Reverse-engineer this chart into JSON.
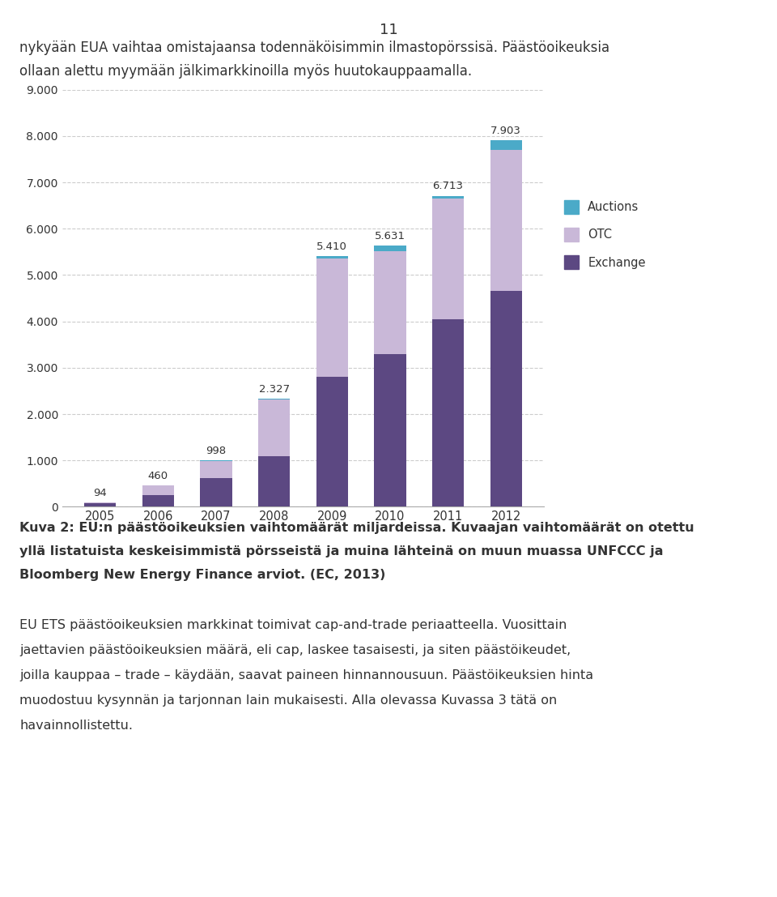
{
  "years": [
    "2005",
    "2006",
    "2007",
    "2008",
    "2009",
    "2010",
    "2011",
    "2012"
  ],
  "exchange": [
    80,
    260,
    620,
    1100,
    2800,
    3300,
    4050,
    4650
  ],
  "otc": [
    14,
    195,
    370,
    1220,
    2560,
    2220,
    2600,
    3050
  ],
  "auctions": [
    0,
    5,
    8,
    7,
    50,
    111,
    63,
    203
  ],
  "totals": [
    94,
    460,
    998,
    2327,
    5410,
    5631,
    6713,
    7903
  ],
  "total_labels": [
    "94",
    "460",
    "998",
    "2.327",
    "5.410",
    "5.631",
    "6.713",
    "7.903"
  ],
  "color_exchange": "#5C4882",
  "color_otc": "#C9B8D8",
  "color_auctions": "#4BAAC8",
  "ylim": [
    0,
    9000
  ],
  "yticks": [
    0,
    1000,
    2000,
    3000,
    4000,
    5000,
    6000,
    7000,
    8000,
    9000
  ],
  "ytick_labels": [
    "0",
    "1.000",
    "2.000",
    "3.000",
    "4.000",
    "5.000",
    "6.000",
    "7.000",
    "8.000",
    "9.000"
  ],
  "grid_color": "#CCCCCC",
  "background_color": "#FFFFFF",
  "text_color": "#333333",
  "bar_width": 0.55,
  "header1": "nykyään EUA vaihtaa omistajaansa todennäköisimmin ilmastopörssisä. Päästöoikeuksia",
  "header2": "ollaan alettu myymään jälkimarkkinoilla myös huutokauppaamalla.",
  "page_number": "11",
  "caption_bold": "Kuva 2: EU:n päästöoikeuksien vaihtomäärät miljardeissa. Kuvaajan vaihtomäärät on otettu yllä listatuista keskeisimmistä pörsseistä ja muina lähteinä on muun muassa UNFCCC ja Bloomberg New Energy Finance arviot. (EC, 2013)",
  "body_text": "EU ETS päästöoikeuksien markkinat toimivat cap-and-trade periaatteella. Vuosittain jaettavien päästöoikeuksien määrä, eli cap, laskee tasaisesti, ja siten päästöikeudet, joilla kauppaa – trade – käydään, saavat paineen hinnannousuun. Päästöikeuksien hinta muodostuu kysynnän ja tarjonnan lain mukaisesti. Alla olevassa Kuvassa 3 tätä on havainnollistettu."
}
